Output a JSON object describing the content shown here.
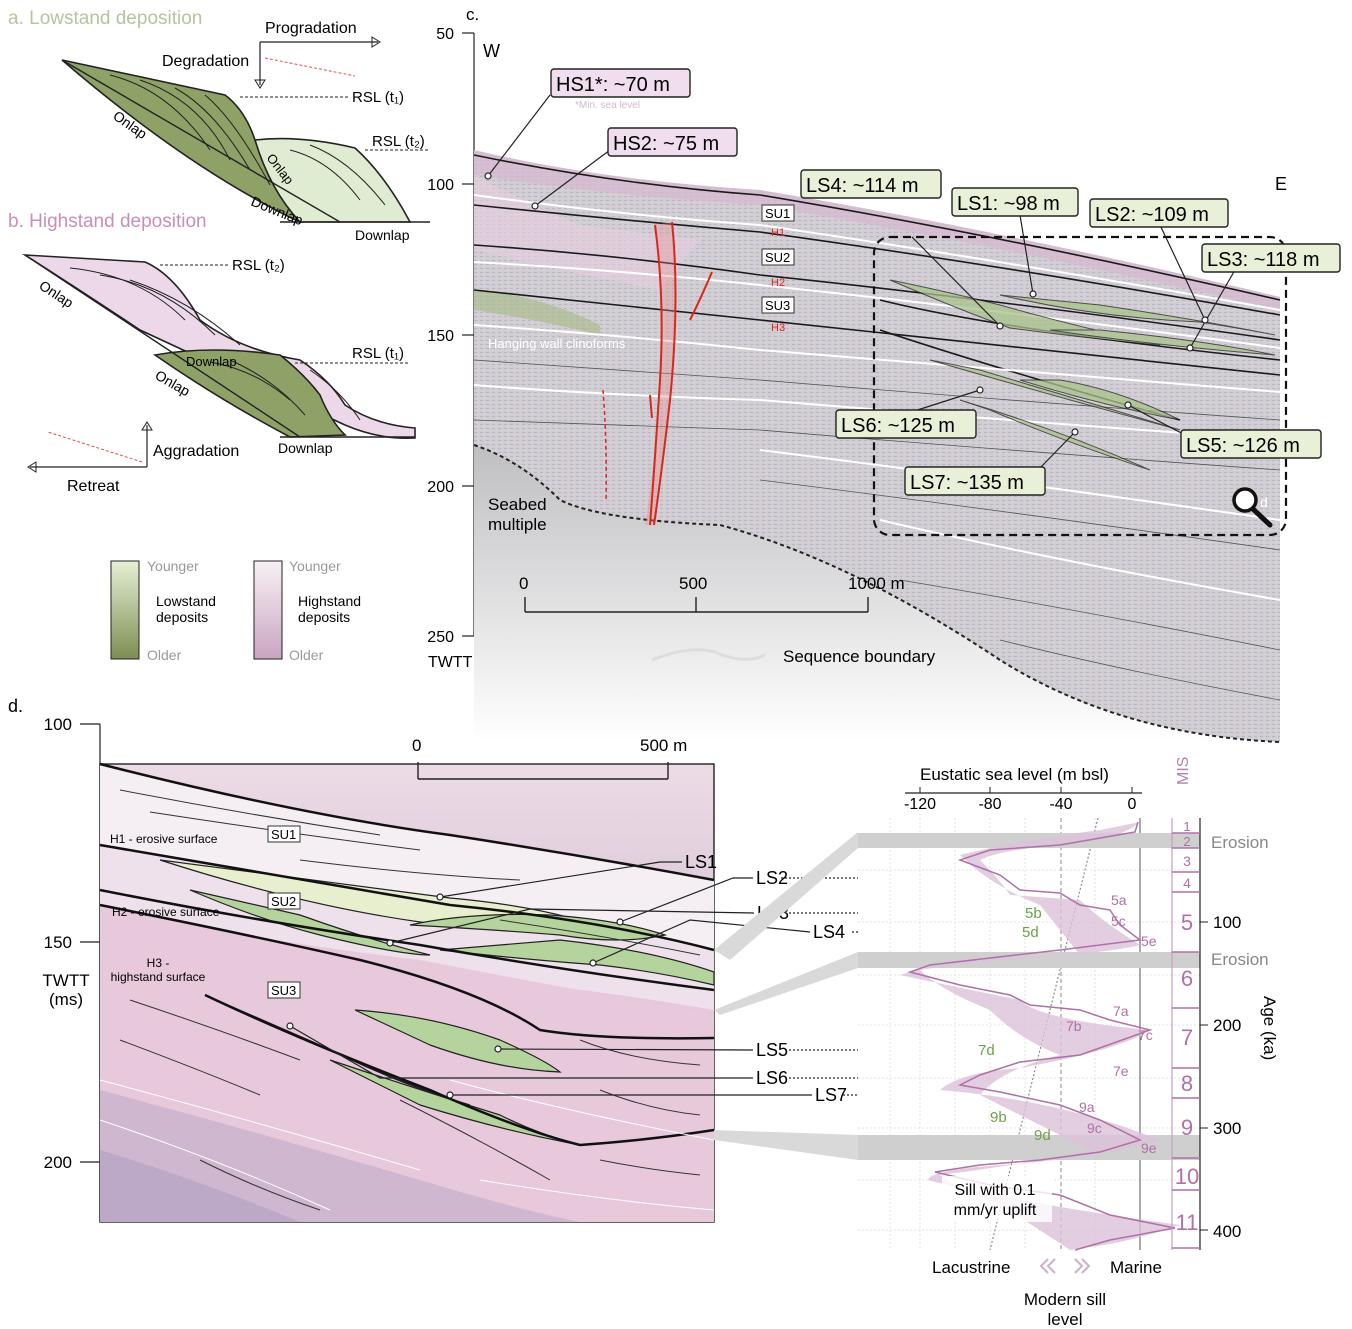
{
  "panel_a": {
    "title": "a. Lowstand deposition",
    "progradation": "Progradation",
    "degradation": "Degradation",
    "rsl_t1": "RSL (t₁)",
    "rsl_t2": "RSL (t₂)",
    "onlap": "Onlap",
    "onlap2": "Onlap",
    "downlap": "Downlap",
    "downlap2": "Downlap"
  },
  "panel_b": {
    "title": "b. Highstand deposition",
    "rsl_t2": "RSL (t₂)",
    "rsl_t1": "RSL (t₁)",
    "onlap": "Onlap",
    "onlap2": "Onlap",
    "downlap": "Downlap",
    "downlap2": "Downlap",
    "aggradation": "Aggradation",
    "retreat": "Retreat"
  },
  "legend": {
    "younger": "Younger",
    "older": "Older",
    "lowstand": "Lowstand deposits",
    "highstand": "Highstand deposits",
    "younger2": "Younger",
    "older2": "Older",
    "colors": {
      "lowstand_young": "#e6f0d6",
      "lowstand_old": "#7c8e52",
      "highstand_young": "#f6eef4",
      "highstand_old": "#c9a5c0"
    }
  },
  "panel_c": {
    "title": "c.",
    "west": "W",
    "east": "E",
    "axis_label": "TWTT (ms)",
    "ticks": [
      "50",
      "100",
      "150",
      "200",
      "250"
    ],
    "scale": [
      "0",
      "500",
      "1000 m"
    ],
    "hs1": "HS1*: ~70 m",
    "hs1_note": "*Min. sea level",
    "hs2": "HS2: ~75 m",
    "ls4": "LS4: ~114 m",
    "ls1": "LS1: ~98 m",
    "ls2": "LS2: ~109 m",
    "ls3": "LS3: ~118 m",
    "ls6": "LS6: ~125 m",
    "ls5": "LS5: ~126 m",
    "ls7": "LS7: ~135 m",
    "su1": "SU1",
    "su2": "SU2",
    "su3": "SU3",
    "h1": "H1",
    "h2": "H2",
    "h3": "H3",
    "hanging": "Hanging wall clinoforms",
    "multiple": "Seabed multiple",
    "seq_boundary": "Sequence boundary",
    "zoom_letter": "d"
  },
  "panel_d": {
    "title": "d.",
    "axis_label": "TWTT (ms)",
    "ticks": [
      "100",
      "150",
      "200"
    ],
    "scale": [
      "0",
      "500 m"
    ],
    "h1": "H1 - erosive surface",
    "h2": "H2 - erosive surface",
    "h3": "H3 - highstand surface",
    "su1": "SU1",
    "su2": "SU2",
    "su3": "SU3",
    "ls": [
      "LS1",
      "LS2",
      "LS3",
      "LS4",
      "LS5",
      "LS6",
      "LS7"
    ]
  },
  "sea_level": {
    "title": "Eustatic sea level (m bsl)",
    "x_ticks": [
      "-120",
      "-80",
      "-40",
      "0"
    ],
    "mis_label": "MIS",
    "age_label": "Age (ka)",
    "age_ticks": [
      "100",
      "200",
      "300",
      "400"
    ],
    "mis": [
      "1",
      "2",
      "3",
      "4",
      "5",
      "6",
      "7",
      "8",
      "9",
      "10",
      "11"
    ],
    "erosion": "Erosion",
    "erosion2": "Erosion",
    "substages_purple": [
      "5a",
      "5c",
      "5e",
      "7a",
      "7c",
      "7e",
      "9a",
      "9c",
      "9e",
      "7b"
    ],
    "substages_green": [
      "5b",
      "5d",
      "7d",
      "9b",
      "9d"
    ],
    "sill_note": "Sill with 0.1 mm/yr uplift",
    "lacustrine": "Lacustrine",
    "marine": "Marine",
    "modern_sill": "Modern sill level"
  }
}
